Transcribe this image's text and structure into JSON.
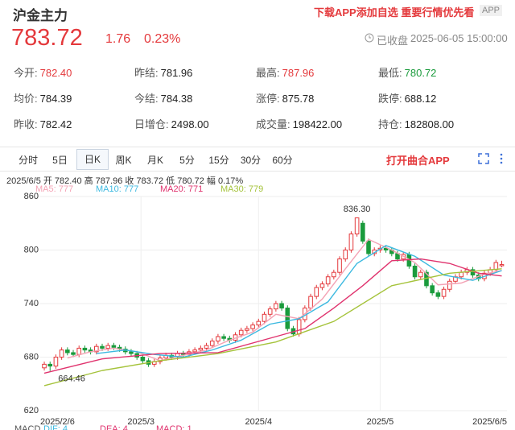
{
  "header": {
    "title": "沪金主力",
    "promo": "下载APP添加自选 重要行情优先看",
    "app_badge": "APP",
    "price": "783.72",
    "change": "1.76",
    "change_pct": "0.23%",
    "status": "已收盘",
    "time": "2025-06-05 15:00:00"
  },
  "stats": [
    [
      {
        "label": "今开:",
        "value": "782.40",
        "color": "#e4393c"
      },
      {
        "label": "昨结:",
        "value": "781.96"
      },
      {
        "label": "最高:",
        "value": "787.96",
        "color": "#e4393c"
      },
      {
        "label": "最低:",
        "value": "780.72",
        "color": "#1a9b3c"
      }
    ],
    [
      {
        "label": "均价:",
        "value": "784.39"
      },
      {
        "label": "今结:",
        "value": "784.38"
      },
      {
        "label": "涨停:",
        "value": "875.78"
      },
      {
        "label": "跌停:",
        "value": "688.12"
      }
    ],
    [
      {
        "label": "昨收:",
        "value": "782.42"
      },
      {
        "label": "日增仓:",
        "value": "2498.00"
      },
      {
        "label": "成交量:",
        "value": "198422.00"
      },
      {
        "label": "持仓:",
        "value": "182808.00"
      }
    ]
  ],
  "tabs": [
    "分时",
    "5日",
    "日K",
    "周K",
    "月K",
    "5分",
    "15分",
    "30分",
    "60分"
  ],
  "selected_tab": 2,
  "open_app": "打开曲合APP",
  "indicator_row": [
    {
      "text": "MACD",
      "color": "#555"
    },
    {
      "text": "DIF: 4",
      "color": "#3cb9e0"
    },
    {
      "text": "DEA: 4",
      "color": "#e0336e"
    },
    {
      "text": "MACD: 1",
      "color": "#e0336e"
    }
  ],
  "chart_data": {
    "type": "candlestick",
    "info": "2025/6/5  开 782.40  高 787.96  收 783.72  低 780.72  幅 0.17%",
    "up_color": "#e4393c",
    "down_color": "#1a9b3c",
    "open": [
      668,
      672,
      670,
      680,
      688,
      685,
      683,
      690,
      688,
      686,
      692,
      690,
      693,
      691,
      689,
      686,
      684,
      680,
      676,
      672,
      675,
      679,
      682,
      680,
      684,
      683,
      686,
      688,
      690,
      693,
      698,
      703,
      701,
      699,
      705,
      710,
      712,
      716,
      720,
      728,
      734,
      740,
      735,
      712,
      706,
      722,
      735,
      748,
      758,
      762,
      770,
      775,
      790,
      800,
      818,
      830,
      810,
      796,
      800,
      802,
      800,
      796,
      790,
      795,
      782,
      770,
      775,
      760,
      752,
      748,
      756,
      765,
      770,
      775,
      778,
      772,
      768,
      774,
      778,
      782.4
    ],
    "high": [
      675,
      675,
      683,
      691,
      691,
      688,
      693,
      693,
      691,
      695,
      695,
      696,
      696,
      694,
      692,
      689,
      687,
      683,
      679,
      678,
      682,
      685,
      685,
      687,
      687,
      689,
      691,
      693,
      696,
      701,
      706,
      706,
      704,
      708,
      713,
      715,
      719,
      723,
      731,
      737,
      743,
      743,
      738,
      715,
      725,
      738,
      751,
      761,
      765,
      773,
      778,
      793,
      803,
      821,
      836.3,
      833,
      813,
      803,
      805,
      805,
      803,
      799,
      798,
      798,
      785,
      778,
      778,
      763,
      755,
      759,
      768,
      773,
      778,
      781,
      781,
      775,
      777,
      781,
      789,
      787.96
    ],
    "low": [
      665,
      664.46,
      667,
      677,
      682,
      680,
      680,
      685,
      683,
      683,
      687,
      687,
      688,
      686,
      683,
      681,
      677,
      673,
      669,
      669,
      672,
      676,
      677,
      677,
      680,
      680,
      683,
      685,
      687,
      690,
      695,
      698,
      696,
      696,
      702,
      707,
      709,
      713,
      717,
      725,
      731,
      732,
      709,
      703,
      703,
      719,
      732,
      745,
      755,
      759,
      767,
      772,
      787,
      797,
      815,
      807,
      793,
      793,
      797,
      797,
      793,
      787,
      787,
      779,
      767,
      767,
      757,
      749,
      745,
      745,
      753,
      762,
      767,
      772,
      769,
      765,
      765,
      771,
      775,
      780.72
    ],
    "close": [
      672,
      670,
      680,
      688,
      685,
      683,
      690,
      688,
      686,
      692,
      690,
      693,
      691,
      689,
      686,
      684,
      680,
      676,
      672,
      675,
      679,
      682,
      680,
      684,
      683,
      686,
      688,
      690,
      693,
      698,
      703,
      701,
      699,
      705,
      710,
      712,
      716,
      720,
      728,
      734,
      740,
      735,
      712,
      706,
      722,
      735,
      748,
      758,
      762,
      770,
      775,
      790,
      800,
      818,
      836,
      810,
      796,
      800,
      802,
      800,
      796,
      790,
      795,
      782,
      770,
      775,
      760,
      752,
      748,
      756,
      765,
      770,
      775,
      778,
      772,
      768,
      774,
      778,
      786,
      783.72
    ],
    "series": [
      {
        "name": "MA5: 777",
        "color": "#f4a3b5",
        "x": [
          4,
          8,
          12,
          16,
          20,
          24,
          28,
          32,
          36,
          40,
          44,
          48,
          52,
          56,
          60,
          64,
          68,
          72,
          76,
          79
        ],
        "values": [
          679,
          686,
          690,
          686,
          676,
          682,
          688,
          699,
          708,
          728,
          723,
          745,
          779,
          812,
          800,
          786,
          761,
          763,
          773,
          777
        ]
      },
      {
        "name": "MA10: 777",
        "color": "#3cb9e0",
        "x": [
          9,
          14,
          19,
          24,
          29,
          34,
          39,
          44,
          49,
          54,
          59,
          64,
          69,
          74,
          79
        ],
        "values": [
          684,
          688,
          683,
          680,
          688,
          699,
          717,
          723,
          742,
          785,
          805,
          793,
          772,
          766,
          777
        ]
      },
      {
        "name": "MA20: 771",
        "color": "#e0336e",
        "x": [
          0,
          10,
          20,
          30,
          40,
          45,
          50,
          55,
          60,
          65,
          70,
          75,
          79
        ],
        "values": [
          662,
          678,
          684,
          685,
          703,
          712,
          735,
          760,
          788,
          790,
          785,
          774,
          771
        ]
      },
      {
        "name": "MA30: 779",
        "color": "#a5c33b",
        "x": [
          0,
          10,
          20,
          30,
          40,
          50,
          60,
          70,
          79
        ],
        "values": [
          648,
          665,
          676,
          684,
          697,
          720,
          760,
          774,
          779
        ]
      }
    ],
    "annotations": [
      {
        "text": "836.30",
        "x": 54,
        "y": 836.3
      },
      {
        "text": "664.46",
        "x": 1,
        "y": 664.46
      }
    ],
    "xlim": [
      -0.7,
      79.9
    ],
    "ylim": [
      620,
      860
    ],
    "yticks": [
      620,
      680,
      740,
      800,
      860
    ],
    "xticks": [
      {
        "value": 0,
        "label": "2025/2/6"
      },
      {
        "value": 16.7,
        "label": "2025/3"
      },
      {
        "value": 37,
        "label": "2025/4"
      },
      {
        "value": 58,
        "label": "2025/5"
      },
      {
        "value": 79,
        "label": "2025/6/5"
      }
    ],
    "grid": true
  }
}
